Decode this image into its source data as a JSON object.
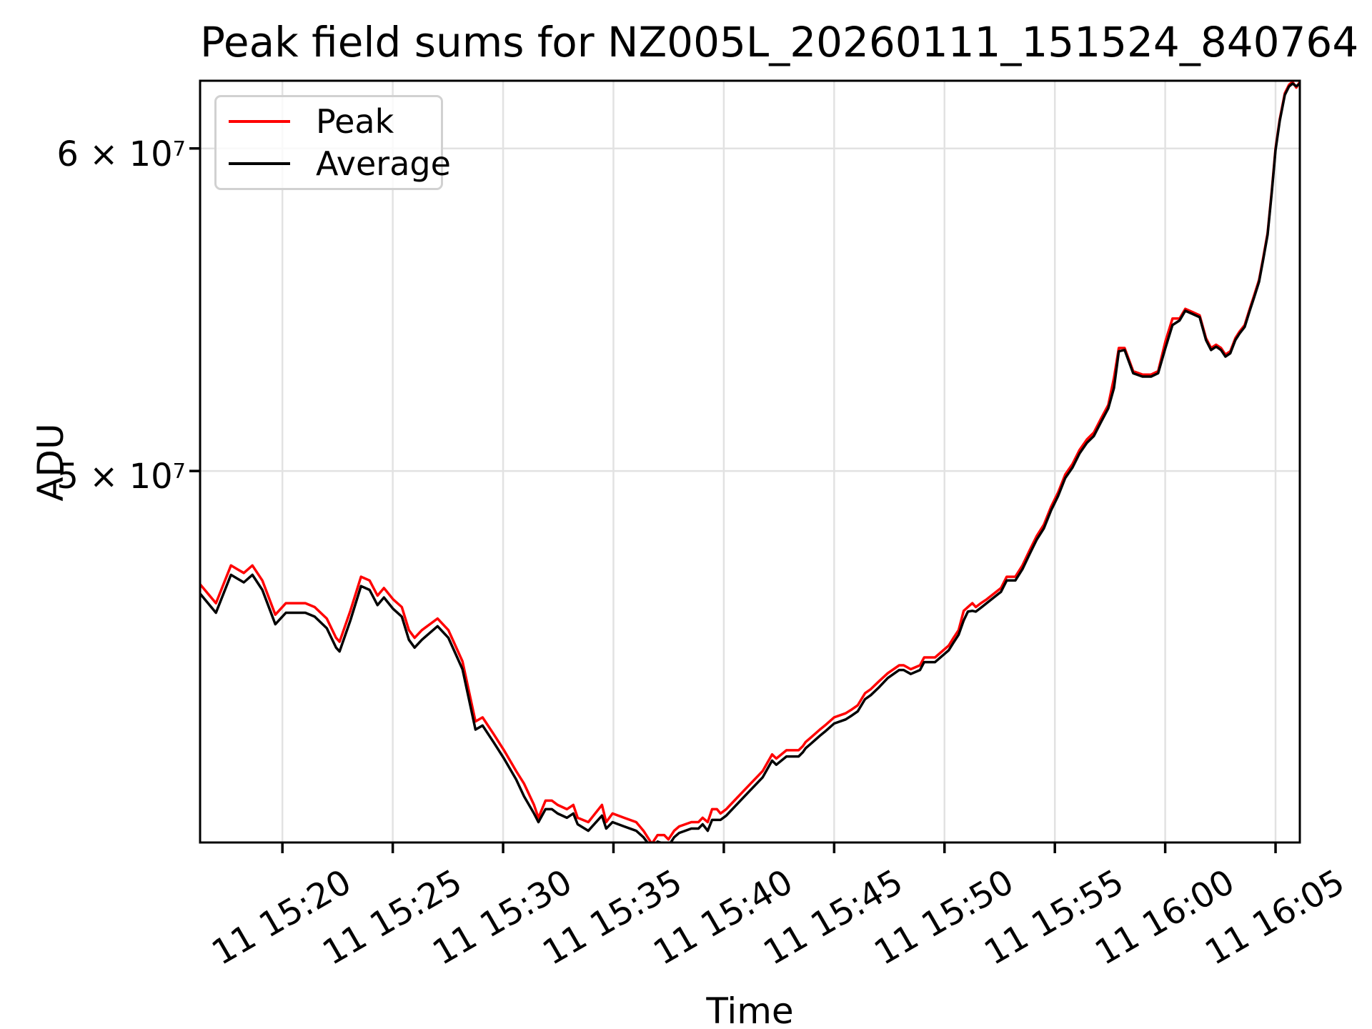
{
  "title": "Peak field sums for NZ005L_20260111_151524_840764",
  "axes": {
    "x_label": "Time",
    "y_label": "ADU"
  },
  "legend": {
    "entries": [
      {
        "label": "Peak",
        "color": "#ff0000"
      },
      {
        "label": "Average",
        "color": "#000000"
      }
    ]
  },
  "chart_data": {
    "type": "line",
    "title": "Peak field sums for NZ005L_20260111_151524_840764",
    "xlabel": "Time",
    "ylabel": "ADU",
    "y_scale": "log",
    "grid": true,
    "legend_position": "upper left",
    "value_scale": 10000000,
    "x_unit": "minutes after 15:00 on day 11",
    "x_range": [
      16.27,
      66.1
    ],
    "y_range": [
      4.053,
      6.234
    ],
    "x_ticks": [
      {
        "t": 20,
        "label": "11 15:20"
      },
      {
        "t": 25,
        "label": "11 15:25"
      },
      {
        "t": 30,
        "label": "11 15:30"
      },
      {
        "t": 35,
        "label": "11 15:35"
      },
      {
        "t": 40,
        "label": "11 15:40"
      },
      {
        "t": 45,
        "label": "11 15:45"
      },
      {
        "t": 50,
        "label": "11 15:50"
      },
      {
        "t": 55,
        "label": "11 15:55"
      },
      {
        "t": 60,
        "label": "11 16:00"
      },
      {
        "t": 65,
        "label": "11 16:05"
      }
    ],
    "y_ticks": [
      {
        "v": 5,
        "label": "5 × 10^7"
      },
      {
        "v": 6,
        "label": "6 × 10^7"
      }
    ],
    "x": [
      16.27,
      16.99,
      17.67,
      17.96,
      18.25,
      18.64,
      19.09,
      19.68,
      20.16,
      20.62,
      21.04,
      21.46,
      22.01,
      22.43,
      22.59,
      23.08,
      23.56,
      23.95,
      24.31,
      24.6,
      25.02,
      25.41,
      25.73,
      25.99,
      26.32,
      27.03,
      27.52,
      28.16,
      28.75,
      29.07,
      29.56,
      30.04,
      30.59,
      30.95,
      31.4,
      31.6,
      31.92,
      32.21,
      32.47,
      32.89,
      33.18,
      33.38,
      33.86,
      34.48,
      34.67,
      34.96,
      35.48,
      36.03,
      36.36,
      36.74,
      37.0,
      37.3,
      37.49,
      37.75,
      37.98,
      38.53,
      38.85,
      39.04,
      39.27,
      39.47,
      39.69,
      39.85,
      40.11,
      40.66,
      41.21,
      41.76,
      42.19,
      42.38,
      42.84,
      43.39,
      43.58,
      43.71,
      43.93,
      44.35,
      44.58,
      45.0,
      45.52,
      45.81,
      46.07,
      46.4,
      46.66,
      47.04,
      47.43,
      47.95,
      48.15,
      48.47,
      48.89,
      49.08,
      49.57,
      50.19,
      50.41,
      50.64,
      50.87,
      51.06,
      51.26,
      51.42,
      51.65,
      51.91,
      52.56,
      52.82,
      52.98,
      53.21,
      53.53,
      53.85,
      54.18,
      54.5,
      54.83,
      55.15,
      55.47,
      55.8,
      56.12,
      56.45,
      56.77,
      57.09,
      57.42,
      57.68,
      57.9,
      58.16,
      58.55,
      58.97,
      59.36,
      59.68,
      60.01,
      60.33,
      60.65,
      60.91,
      61.24,
      61.56,
      61.85,
      62.08,
      62.31,
      62.53,
      62.73,
      62.95,
      63.18,
      63.37,
      63.6,
      63.83,
      64.02,
      64.25,
      64.44,
      64.64,
      64.83,
      65.0,
      65.19,
      65.42,
      65.61,
      65.77,
      65.94,
      66.1
    ],
    "series": [
      {
        "name": "Peak",
        "color": "#ff0000",
        "values": [
          4.69,
          4.64,
          4.74,
          4.73,
          4.72,
          4.74,
          4.7,
          4.61,
          4.64,
          4.64,
          4.64,
          4.63,
          4.6,
          4.55,
          4.54,
          4.62,
          4.71,
          4.7,
          4.66,
          4.68,
          4.65,
          4.63,
          4.57,
          4.55,
          4.57,
          4.6,
          4.57,
          4.49,
          4.34,
          4.35,
          4.31,
          4.27,
          4.22,
          4.19,
          4.14,
          4.11,
          4.15,
          4.15,
          4.14,
          4.13,
          4.14,
          4.11,
          4.1,
          4.14,
          4.1,
          4.12,
          4.11,
          4.1,
          4.08,
          4.05,
          4.07,
          4.07,
          4.06,
          4.08,
          4.09,
          4.1,
          4.1,
          4.11,
          4.1,
          4.13,
          4.13,
          4.12,
          4.13,
          4.16,
          4.19,
          4.22,
          4.26,
          4.25,
          4.27,
          4.27,
          4.28,
          4.29,
          4.3,
          4.32,
          4.33,
          4.35,
          4.36,
          4.37,
          4.38,
          4.41,
          4.42,
          4.44,
          4.46,
          4.48,
          4.48,
          4.47,
          4.48,
          4.5,
          4.5,
          4.53,
          4.55,
          4.57,
          4.62,
          4.63,
          4.64,
          4.63,
          4.64,
          4.65,
          4.68,
          4.71,
          4.71,
          4.71,
          4.74,
          4.78,
          4.82,
          4.85,
          4.9,
          4.94,
          4.99,
          5.02,
          5.06,
          5.09,
          5.11,
          5.15,
          5.19,
          5.27,
          5.36,
          5.36,
          5.29,
          5.28,
          5.28,
          5.29,
          5.38,
          5.45,
          5.45,
          5.48,
          5.47,
          5.46,
          5.39,
          5.36,
          5.37,
          5.36,
          5.34,
          5.35,
          5.39,
          5.41,
          5.43,
          5.48,
          5.52,
          5.57,
          5.64,
          5.72,
          5.86,
          6.0,
          6.1,
          6.19,
          6.22,
          6.23,
          6.21,
          6.23
        ]
      },
      {
        "name": "Average",
        "color": "#000000",
        "values": [
          4.665,
          4.615,
          4.715,
          4.705,
          4.695,
          4.715,
          4.675,
          4.585,
          4.615,
          4.615,
          4.615,
          4.605,
          4.575,
          4.525,
          4.515,
          4.595,
          4.685,
          4.675,
          4.635,
          4.655,
          4.625,
          4.605,
          4.545,
          4.525,
          4.545,
          4.58,
          4.55,
          4.47,
          4.32,
          4.33,
          4.29,
          4.25,
          4.2,
          4.16,
          4.12,
          4.1,
          4.13,
          4.13,
          4.12,
          4.11,
          4.12,
          4.095,
          4.08,
          4.115,
          4.085,
          4.1,
          4.09,
          4.08,
          4.065,
          4.04,
          4.055,
          4.05,
          4.045,
          4.065,
          4.075,
          4.085,
          4.085,
          4.095,
          4.08,
          4.105,
          4.105,
          4.105,
          4.115,
          4.145,
          4.175,
          4.205,
          4.245,
          4.235,
          4.255,
          4.255,
          4.265,
          4.275,
          4.285,
          4.305,
          4.315,
          4.335,
          4.345,
          4.355,
          4.365,
          4.395,
          4.405,
          4.425,
          4.448,
          4.468,
          4.468,
          4.458,
          4.468,
          4.488,
          4.488,
          4.518,
          4.538,
          4.558,
          4.595,
          4.618,
          4.62,
          4.618,
          4.628,
          4.64,
          4.67,
          4.7,
          4.7,
          4.7,
          4.73,
          4.77,
          4.81,
          4.84,
          4.89,
          4.93,
          4.98,
          5.01,
          5.05,
          5.08,
          5.1,
          5.14,
          5.18,
          5.24,
          5.35,
          5.354,
          5.284,
          5.274,
          5.274,
          5.284,
          5.36,
          5.43,
          5.444,
          5.474,
          5.464,
          5.454,
          5.384,
          5.354,
          5.364,
          5.354,
          5.334,
          5.344,
          5.384,
          5.404,
          5.424,
          5.474,
          5.514,
          5.564,
          5.634,
          5.714,
          5.854,
          5.994,
          6.094,
          6.184,
          6.214,
          6.224,
          6.215,
          6.224
        ]
      }
    ],
    "style": {
      "grid_color": "#e2e2e2",
      "spine_color": "#000000",
      "line_width": 3.5,
      "background": "#ffffff"
    }
  }
}
